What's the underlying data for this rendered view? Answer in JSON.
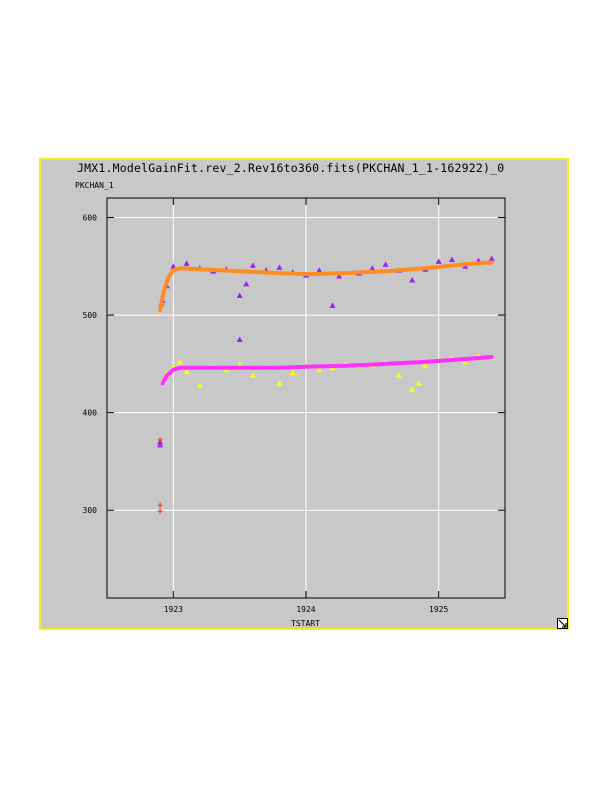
{
  "window": {
    "title": "JMX1.ModelGainFit.rev_2.Rev16to360.fits(PKCHAN_1_1-162922)_0",
    "resize_icon": "resize-corner-icon"
  },
  "chart_data": {
    "type": "scatter",
    "ylabel": "PKCHAN_1",
    "xlabel": "TSTART",
    "xlim": [
      1922.5,
      1925.5
    ],
    "ylim": [
      210,
      620
    ],
    "xticks": [
      "1923",
      "1924",
      "1925"
    ],
    "yticks": [
      "300",
      "400",
      "500",
      "600"
    ],
    "grid": true,
    "series": [
      {
        "color": "#a020f0",
        "marker": "triangle",
        "points": [
          [
            1922.9,
            370
          ],
          [
            1922.9,
            367
          ],
          [
            1922.91,
            512
          ],
          [
            1922.92,
            515
          ],
          [
            1922.95,
            530
          ],
          [
            1923.0,
            550
          ],
          [
            1923.1,
            553
          ],
          [
            1923.2,
            548
          ],
          [
            1923.3,
            545
          ],
          [
            1923.4,
            547
          ],
          [
            1923.5,
            520
          ],
          [
            1923.5,
            475
          ],
          [
            1923.55,
            532
          ],
          [
            1923.6,
            551
          ],
          [
            1923.7,
            546
          ],
          [
            1923.8,
            549
          ],
          [
            1923.9,
            544
          ],
          [
            1924.0,
            541
          ],
          [
            1924.1,
            546
          ],
          [
            1924.2,
            510
          ],
          [
            1924.25,
            540
          ],
          [
            1924.4,
            543
          ],
          [
            1924.5,
            548
          ],
          [
            1924.6,
            552
          ],
          [
            1924.7,
            546
          ],
          [
            1924.8,
            536
          ],
          [
            1924.9,
            547
          ],
          [
            1925.0,
            555
          ],
          [
            1925.1,
            557
          ],
          [
            1925.2,
            550
          ],
          [
            1925.3,
            556
          ],
          [
            1925.4,
            558
          ]
        ]
      },
      {
        "color": "#ffff00",
        "marker": "triangle",
        "points": [
          [
            1922.93,
            432
          ],
          [
            1922.95,
            440
          ],
          [
            1923.0,
            447
          ],
          [
            1923.05,
            452
          ],
          [
            1923.1,
            442
          ],
          [
            1923.2,
            428
          ],
          [
            1923.3,
            447
          ],
          [
            1923.4,
            444
          ],
          [
            1923.5,
            449
          ],
          [
            1923.6,
            438
          ],
          [
            1923.7,
            446
          ],
          [
            1923.8,
            430
          ],
          [
            1923.9,
            441
          ],
          [
            1924.0,
            448
          ],
          [
            1924.1,
            444
          ],
          [
            1924.2,
            446
          ],
          [
            1924.3,
            450
          ],
          [
            1924.4,
            448
          ],
          [
            1924.5,
            449
          ],
          [
            1924.6,
            451
          ],
          [
            1924.7,
            438
          ],
          [
            1924.8,
            424
          ],
          [
            1924.85,
            430
          ],
          [
            1924.9,
            448
          ],
          [
            1925.0,
            453
          ],
          [
            1925.1,
            456
          ],
          [
            1925.2,
            452
          ],
          [
            1925.3,
            458
          ],
          [
            1925.4,
            457
          ]
        ]
      },
      {
        "color": "#ff3030",
        "marker": "plus",
        "points": [
          [
            1922.9,
            305
          ],
          [
            1922.9,
            299
          ],
          [
            1922.9,
            372
          ]
        ]
      },
      {
        "color": "#ff8c20",
        "marker": "line",
        "points": [
          [
            1922.9,
            505
          ],
          [
            1922.93,
            525
          ],
          [
            1922.96,
            538
          ],
          [
            1923.0,
            546
          ],
          [
            1923.05,
            548
          ],
          [
            1923.2,
            547
          ],
          [
            1923.5,
            545
          ],
          [
            1923.8,
            543
          ],
          [
            1924.0,
            542
          ],
          [
            1924.3,
            543
          ],
          [
            1924.6,
            545
          ],
          [
            1924.9,
            548
          ],
          [
            1925.2,
            552
          ],
          [
            1925.4,
            554
          ]
        ]
      },
      {
        "color": "#ff30ff",
        "marker": "line",
        "points": [
          [
            1922.92,
            430
          ],
          [
            1922.95,
            438
          ],
          [
            1923.0,
            444
          ],
          [
            1923.05,
            446
          ],
          [
            1923.2,
            446
          ],
          [
            1923.5,
            446
          ],
          [
            1923.8,
            446
          ],
          [
            1924.0,
            447
          ],
          [
            1924.3,
            448
          ],
          [
            1924.6,
            450
          ],
          [
            1924.9,
            452
          ],
          [
            1925.2,
            455
          ],
          [
            1925.4,
            457
          ]
        ]
      }
    ]
  }
}
